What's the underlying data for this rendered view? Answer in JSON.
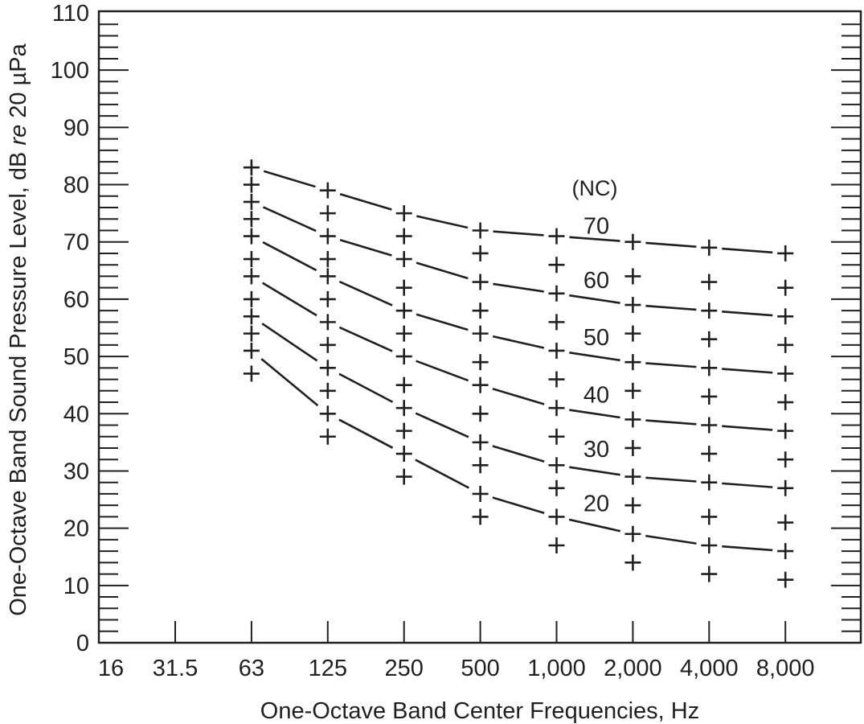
{
  "chart_data": {
    "type": "line",
    "xlabel": "One-Octave Band Center Frequencies, Hz",
    "ylabel_parts": [
      "One-Octave Band Sound Pressure Level, dB ",
      "re",
      " 20 µPa"
    ],
    "categories": [
      "16",
      "31.5",
      "63",
      "125",
      "250",
      "500",
      "1,000",
      "2,000",
      "4,000",
      "8,000"
    ],
    "ylim": [
      0,
      110
    ],
    "yticks": [
      0,
      10,
      20,
      30,
      40,
      50,
      60,
      70,
      80,
      90,
      100,
      110
    ],
    "minor_tick_step": 2,
    "grid": false,
    "legend_title": "(NC)",
    "series": [
      {
        "name": "70",
        "values": [
          null,
          null,
          83,
          79,
          75,
          72,
          71,
          70,
          69,
          68
        ]
      },
      {
        "name": "60",
        "values": [
          null,
          null,
          77,
          71,
          67,
          63,
          61,
          59,
          58,
          57
        ]
      },
      {
        "name": "50",
        "values": [
          null,
          null,
          71,
          64,
          58,
          54,
          51,
          49,
          48,
          47
        ]
      },
      {
        "name": "40",
        "values": [
          null,
          null,
          64,
          56,
          50,
          45,
          41,
          39,
          38,
          37
        ]
      },
      {
        "name": "30",
        "values": [
          null,
          null,
          57,
          48,
          41,
          35,
          31,
          29,
          28,
          27
        ]
      },
      {
        "name": "20",
        "values": [
          null,
          null,
          51,
          40,
          33,
          26,
          22,
          19,
          17,
          16
        ]
      }
    ],
    "intermediate_points": [
      {
        "values": [
          null,
          null,
          80,
          75,
          71,
          68,
          66,
          64,
          63,
          62
        ]
      },
      {
        "values": [
          null,
          null,
          74,
          67,
          62,
          58,
          56,
          54,
          53,
          52
        ]
      },
      {
        "values": [
          null,
          null,
          67,
          60,
          54,
          49,
          46,
          44,
          43,
          42
        ]
      },
      {
        "values": [
          null,
          null,
          60,
          52,
          45,
          40,
          36,
          34,
          33,
          32
        ]
      },
      {
        "values": [
          null,
          null,
          54,
          44,
          37,
          31,
          27,
          24,
          22,
          21
        ]
      },
      {
        "values": [
          null,
          null,
          47,
          36,
          29,
          22,
          17,
          14,
          12,
          11
        ]
      }
    ],
    "label_positions_db": [
      73,
      63.5,
      53.5,
      43.5,
      34,
      24.5
    ],
    "legend_title_db": 79.5,
    "colors": {
      "ink": "#231f20"
    }
  }
}
